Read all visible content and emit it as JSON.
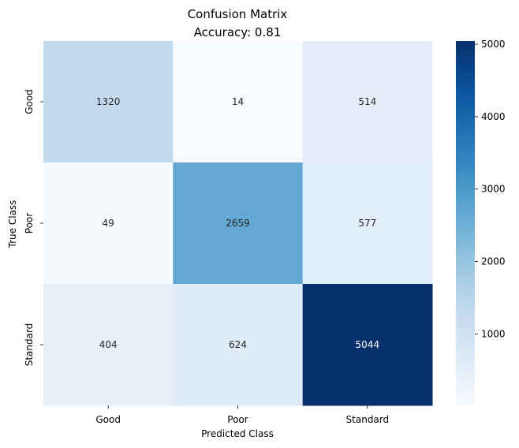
{
  "chart_data": {
    "type": "heatmap",
    "title_lines": [
      "Confusion Matrix",
      "Accuracy: 0.81"
    ],
    "xlabel": "Predicted Class",
    "ylabel": "True Class",
    "x_categories": [
      "Good",
      "Poor",
      "Standard"
    ],
    "y_categories": [
      "Good",
      "Poor",
      "Standard"
    ],
    "values": [
      [
        1320,
        14,
        514
      ],
      [
        49,
        2659,
        577
      ],
      [
        404,
        624,
        5044
      ]
    ],
    "colormap": "Blues",
    "color_range": [
      14,
      5044
    ],
    "colorbar_ticks": [
      1000,
      2000,
      3000,
      4000,
      5000
    ],
    "grid": false,
    "colorbar_position": "right"
  }
}
